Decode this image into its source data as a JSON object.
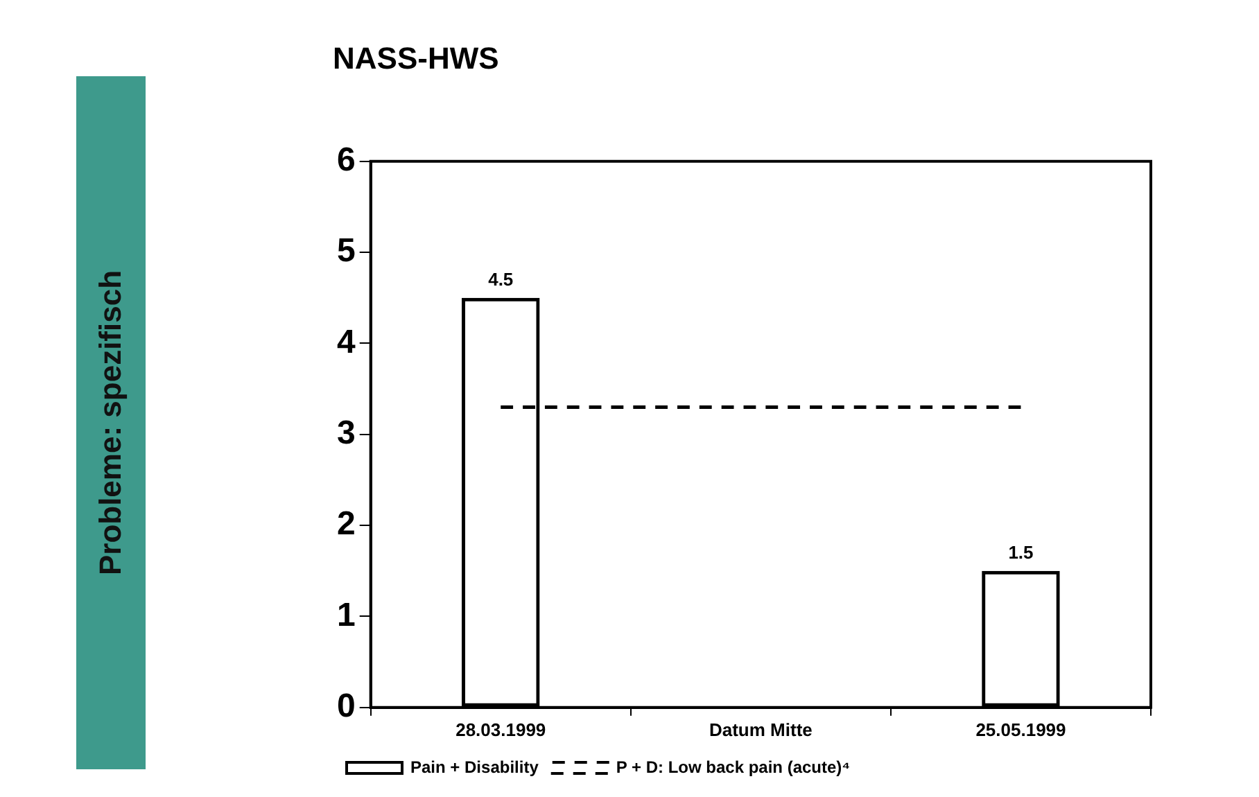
{
  "chart_data": {
    "type": "bar",
    "title": "NASS-HWS",
    "annotations": [
      "Probleme: spezifisch"
    ],
    "categories": [
      "28.03.1999",
      "Datum Mitte",
      "25.05.1999"
    ],
    "series": [
      {
        "name": "Pain + Disability",
        "color": "#000000",
        "values": [
          4.5,
          null,
          1.5
        ],
        "value_labels": [
          "4.5",
          null,
          "1.5"
        ]
      },
      {
        "name": "P + D: Low back pain (acute)⁴",
        "type": "line",
        "color": "#000000",
        "line_style": "dashed",
        "marker": "none",
        "values": [
          3.3,
          3.3,
          3.3
        ]
      }
    ],
    "ylim": [
      0,
      6
    ],
    "yticks": [
      0,
      1,
      2,
      3,
      4,
      5,
      6
    ],
    "grid": false,
    "legend": "bottom"
  }
}
